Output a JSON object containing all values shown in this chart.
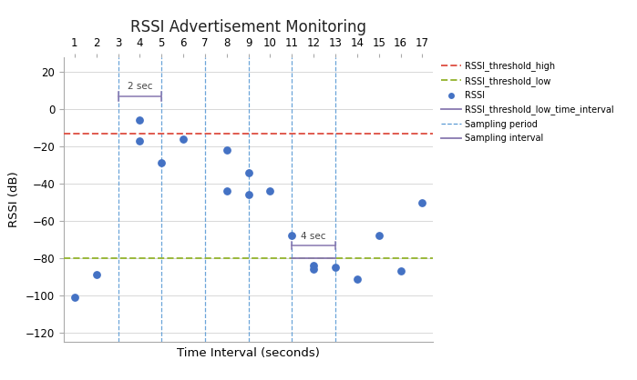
{
  "title": "RSSI Advertisement Monitoring",
  "xlabel": "Time Interval (seconds)",
  "ylabel": "RSSI (dB)",
  "xlim": [
    0.5,
    17.5
  ],
  "ylim": [
    -125,
    28
  ],
  "yticks": [
    -120,
    -100,
    -80,
    -60,
    -40,
    -20,
    0,
    20
  ],
  "xticks_top": [
    1,
    2,
    3,
    4,
    5,
    6,
    7,
    8,
    9,
    10,
    11,
    12,
    13,
    14,
    15,
    16,
    17
  ],
  "rssi_threshold_high": -13,
  "rssi_threshold_low": -80,
  "rssi_color_high": "#e05a4e",
  "rssi_color_low": "#9ab83a",
  "dot_color": "#4472c4",
  "sampling_period_lines": [
    3,
    5,
    7,
    9,
    11,
    13
  ],
  "sampling_period_color": "#5b9bd5",
  "purple_color": "#8878b0",
  "data_points": [
    [
      1,
      -101
    ],
    [
      2,
      -89
    ],
    [
      4,
      -6
    ],
    [
      4,
      -17
    ],
    [
      5,
      -29
    ],
    [
      6,
      -16
    ],
    [
      8,
      -44
    ],
    [
      8,
      -22
    ],
    [
      9,
      -34
    ],
    [
      9,
      -46
    ],
    [
      10,
      -44
    ],
    [
      11,
      -68
    ],
    [
      12,
      -84
    ],
    [
      12,
      -86
    ],
    [
      13,
      -85
    ],
    [
      14,
      -91
    ],
    [
      15,
      -68
    ],
    [
      16,
      -87
    ],
    [
      17,
      -50
    ]
  ],
  "bracket_2sec_x1": 3,
  "bracket_2sec_x2": 5,
  "bracket_2sec_y": 7,
  "bracket_4sec_x1": 11,
  "bracket_4sec_x2": 13,
  "bracket_4sec_y": -73,
  "rssi_low_interval_x1": 11,
  "rssi_low_interval_x2": 13,
  "rssi_low_interval_y": -80,
  "background_color": "#ffffff",
  "grid_color": "#d8d8d8",
  "figsize": [
    6.99,
    4.18
  ],
  "dpi": 100
}
